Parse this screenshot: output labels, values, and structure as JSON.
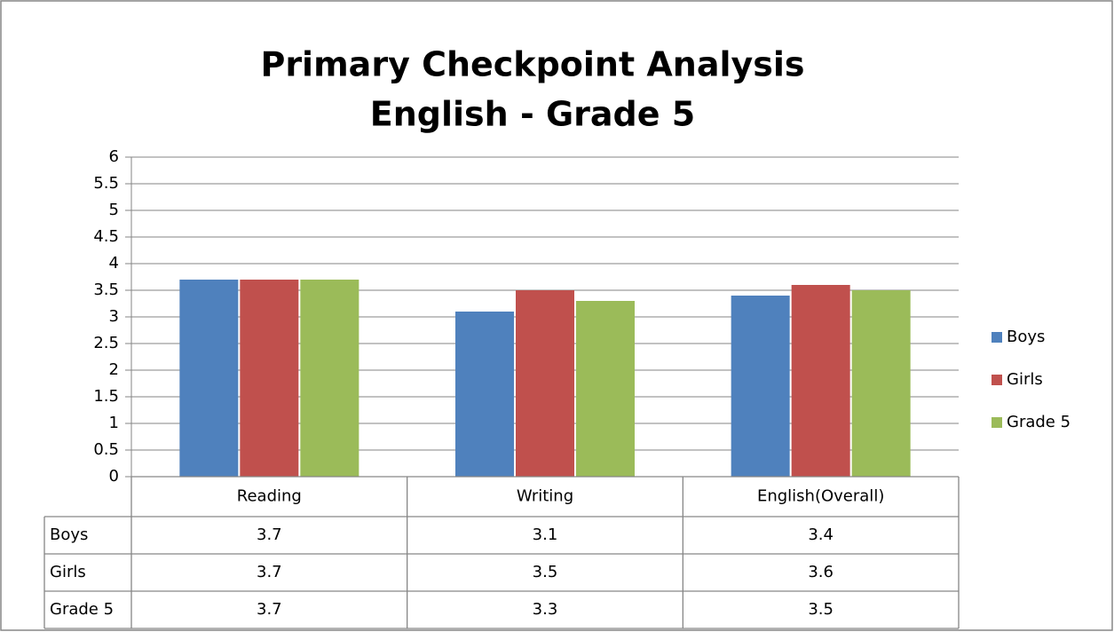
{
  "chart_data": {
    "type": "bar",
    "title": "Primary Checkpoint Analysis",
    "subtitle": "English - Grade 5",
    "categories": [
      "Reading",
      "Writing",
      "English(Overall)"
    ],
    "series": [
      {
        "name": "Boys",
        "color": "#4f81bd",
        "values": [
          3.7,
          3.1,
          3.4
        ]
      },
      {
        "name": "Girls",
        "color": "#c0504d",
        "values": [
          3.7,
          3.5,
          3.6
        ]
      },
      {
        "name": "Grade 5",
        "color": "#9bbb59",
        "values": [
          3.7,
          3.3,
          3.5
        ]
      }
    ],
    "ylim": [
      0,
      6
    ],
    "yticks": [
      0,
      0.5,
      1,
      1.5,
      2,
      2.5,
      3,
      3.5,
      4,
      4.5,
      5,
      5.5,
      6
    ],
    "grid": true,
    "legend": "right",
    "data_table": true
  }
}
